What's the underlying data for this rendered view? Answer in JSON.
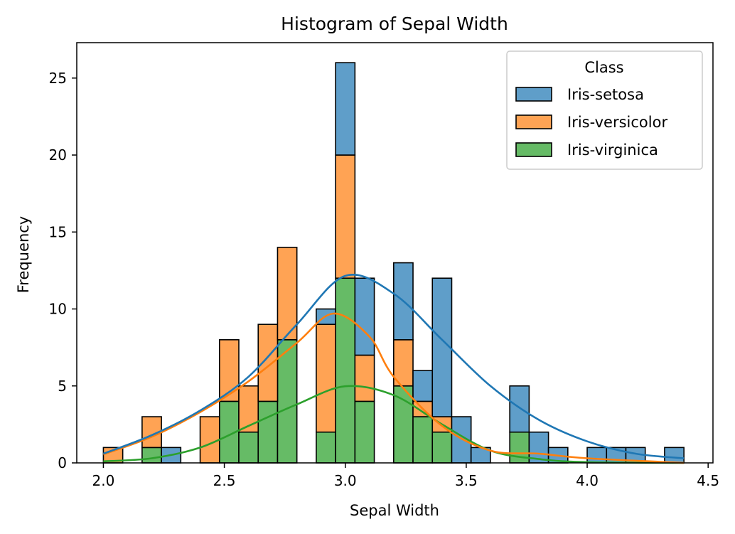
{
  "chart_data": {
    "type": "bar",
    "title": "Histogram of Sepal Width",
    "xlabel": "Sepal Width",
    "ylabel": "Frequency",
    "stacked": true,
    "xlim": [
      1.89,
      4.52
    ],
    "ylim": [
      0,
      27.3
    ],
    "xticks": [
      2.0,
      2.5,
      3.0,
      3.5,
      4.0,
      4.5
    ],
    "xtick_labels": [
      "2.0",
      "2.5",
      "3.0",
      "3.5",
      "4.0",
      "4.5"
    ],
    "yticks": [
      0,
      5,
      10,
      15,
      20,
      25
    ],
    "ytick_labels": [
      "0",
      "5",
      "10",
      "15",
      "20",
      "25"
    ],
    "bins": {
      "start": 2.0,
      "end": 4.4,
      "count": 30
    },
    "grid": false,
    "legend": {
      "title": "Class",
      "placement": "top-right"
    },
    "series": [
      {
        "name": "Iris-virginica",
        "color": "#2ca02c",
        "fill": "#66bb66",
        "values": [
          0,
          0,
          1,
          0,
          0,
          0,
          4,
          2,
          4,
          8,
          0,
          2,
          12,
          4,
          0,
          5,
          3,
          2,
          0,
          0,
          0,
          2,
          0,
          0,
          0,
          0,
          0,
          0,
          0,
          0
        ],
        "kde": [
          [
            2.0,
            0.1
          ],
          [
            2.2,
            0.3
          ],
          [
            2.4,
            1.0
          ],
          [
            2.6,
            2.4
          ],
          [
            2.8,
            3.8
          ],
          [
            3.0,
            4.98
          ],
          [
            3.2,
            4.4
          ],
          [
            3.4,
            2.5
          ],
          [
            3.6,
            0.8
          ],
          [
            3.8,
            0.25
          ],
          [
            4.0,
            0.05
          ],
          [
            4.4,
            0.0
          ]
        ]
      },
      {
        "name": "Iris-versicolor",
        "color": "#ff7f0e",
        "fill": "#ffa354",
        "values": [
          1,
          0,
          2,
          0,
          0,
          3,
          4,
          3,
          5,
          6,
          0,
          7,
          8,
          3,
          0,
          3,
          1,
          1,
          0,
          0,
          0,
          0,
          0,
          0,
          0,
          0,
          0,
          0,
          0,
          0
        ],
        "kde": [
          [
            2.0,
            0.55
          ],
          [
            2.2,
            1.7
          ],
          [
            2.4,
            3.3
          ],
          [
            2.6,
            5.3
          ],
          [
            2.8,
            7.8
          ],
          [
            2.95,
            9.7
          ],
          [
            3.1,
            8.2
          ],
          [
            3.2,
            5.6
          ],
          [
            3.4,
            2.4
          ],
          [
            3.6,
            0.8
          ],
          [
            3.8,
            0.6
          ],
          [
            4.0,
            0.3
          ],
          [
            4.4,
            0.0
          ]
        ]
      },
      {
        "name": "Iris-setosa",
        "color": "#1f77b4",
        "fill": "#5f9ec9",
        "values": [
          0,
          0,
          0,
          1,
          0,
          0,
          0,
          0,
          0,
          0,
          0,
          1,
          6,
          5,
          0,
          5,
          2,
          9,
          3,
          1,
          0,
          3,
          2,
          1,
          0,
          1,
          1,
          1,
          0,
          1
        ],
        "kde": [
          [
            2.0,
            0.6
          ],
          [
            2.2,
            1.8
          ],
          [
            2.4,
            3.4
          ],
          [
            2.6,
            5.6
          ],
          [
            2.8,
            9.0
          ],
          [
            3.0,
            12.15
          ],
          [
            3.2,
            11.0
          ],
          [
            3.4,
            8.0
          ],
          [
            3.6,
            5.0
          ],
          [
            3.8,
            2.8
          ],
          [
            4.0,
            1.4
          ],
          [
            4.2,
            0.6
          ],
          [
            4.4,
            0.3
          ]
        ]
      }
    ]
  }
}
